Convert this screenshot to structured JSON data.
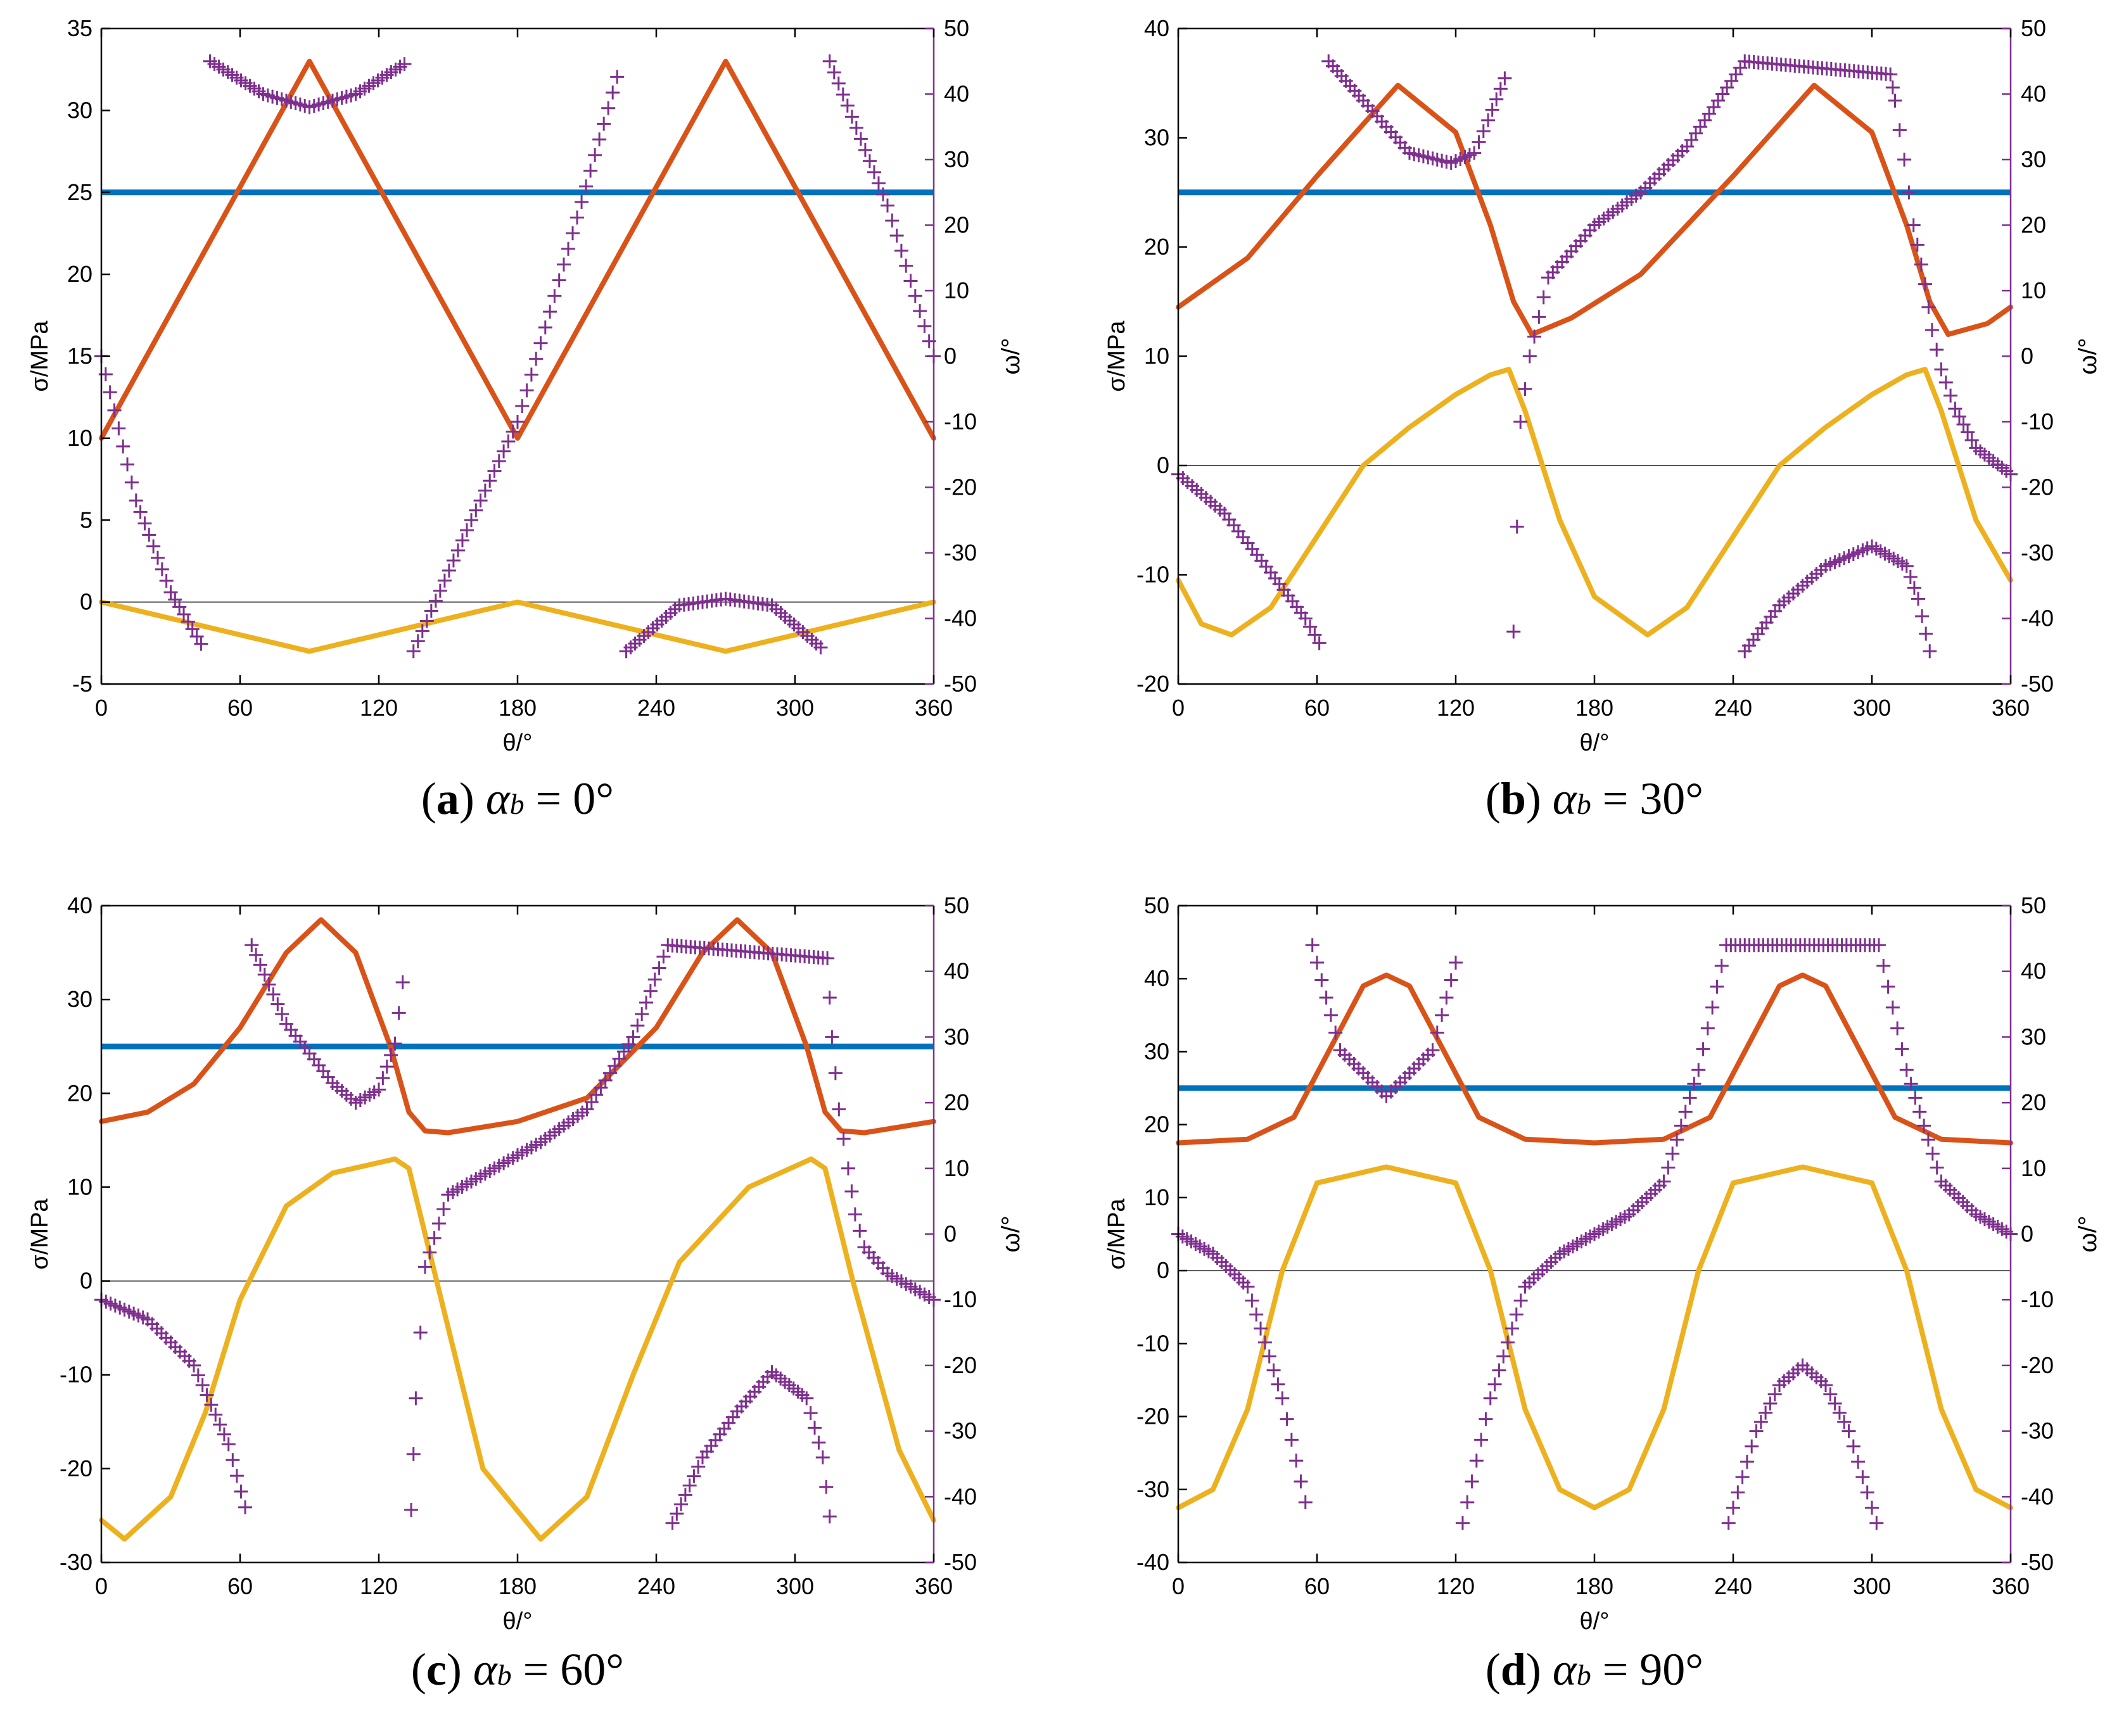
{
  "figure": {
    "panels": [
      {
        "caption_letter": "a",
        "caption_alpha": "α",
        "caption_sub": "b",
        "caption_value": "= 0°",
        "chart_data": {
          "type": "line",
          "xlabel": "θ/°",
          "ylabel": "σ/MPa",
          "y2label": "ω/°",
          "xlim": [
            0,
            360
          ],
          "ylim": [
            -5,
            35
          ],
          "y2lim": [
            -50,
            50
          ],
          "xticks": [
            "0",
            "60",
            "120",
            "180",
            "240",
            "300",
            "360"
          ],
          "yticks": [
            "-5",
            "0",
            "5",
            "10",
            "15",
            "20",
            "25",
            "30",
            "35"
          ],
          "y2ticks": [
            "-50",
            "-40",
            "-30",
            "-20",
            "-10",
            "0",
            "10",
            "20",
            "30",
            "40",
            "50"
          ],
          "series": [
            {
              "color": "#0072BD",
              "constant": 25
            },
            {
              "color": "#D95319",
              "x": [
                0,
                45,
                90,
                135,
                180,
                225,
                270,
                315,
                360
              ],
              "y": [
                10,
                21.5,
                33,
                21.5,
                10,
                21.5,
                33,
                21.5,
                10
              ]
            },
            {
              "color": "#EDB120",
              "x": [
                0,
                45,
                90,
                135,
                180,
                225,
                270,
                315,
                360
              ],
              "y": [
                0,
                -1.5,
                -3,
                -1.5,
                0,
                -1.5,
                -3,
                -1.5,
                0
              ]
            },
            {
              "color": "#7E2F8E",
              "marker": "+",
              "axis": "right",
              "x": [
                0,
                15,
                30,
                45,
                47,
                70,
                90,
                110,
                133,
                135,
                160,
                180,
                200,
                225,
                227,
                250,
                270,
                290,
                313,
                315,
                340,
                360
              ],
              "y": [
                0,
                -22,
                -36,
                -45,
                45,
                40,
                38,
                40,
                45,
                -45,
                -25,
                -10,
                14,
                45,
                -45,
                -38,
                -37,
                -38,
                -45,
                45,
                23,
                0
              ]
            }
          ]
        }
      },
      {
        "caption_letter": "b",
        "caption_alpha": "α",
        "caption_sub": "b",
        "caption_value": "= 30°",
        "chart_data": {
          "type": "line",
          "xlabel": "θ/°",
          "ylabel": "σ/MPa",
          "y2label": "ω/°",
          "xlim": [
            0,
            360
          ],
          "ylim": [
            -20,
            40
          ],
          "y2lim": [
            -50,
            50
          ],
          "xticks": [
            "0",
            "60",
            "120",
            "180",
            "240",
            "300",
            "360"
          ],
          "yticks": [
            "-20",
            "-10",
            "0",
            "10",
            "20",
            "30",
            "40"
          ],
          "y2ticks": [
            "-50",
            "-40",
            "-30",
            "-20",
            "-10",
            "0",
            "10",
            "20",
            "30",
            "40",
            "50"
          ],
          "series": [
            {
              "color": "#0072BD",
              "constant": 25
            },
            {
              "color": "#D95319",
              "x": [
                0,
                30,
                60,
                95,
                120,
                135,
                145,
                153,
                170,
                200,
                240,
                275,
                300,
                315,
                325,
                333,
                350,
                360
              ],
              "y": [
                14.5,
                19,
                26.5,
                34.8,
                30.5,
                22,
                15,
                12,
                13.5,
                17.5,
                26.5,
                34.8,
                30.5,
                22,
                15,
                12,
                13,
                14.5
              ]
            },
            {
              "color": "#EDB120",
              "x": [
                0,
                10,
                23,
                40,
                60,
                80,
                100,
                120,
                135,
                143,
                150,
                165,
                180,
                203,
                220,
                240,
                260,
                280,
                300,
                315,
                323,
                330,
                345,
                360
              ],
              "y": [
                -10.5,
                -14.5,
                -15.5,
                -13,
                -6.5,
                0,
                3.5,
                6.5,
                8.3,
                8.8,
                5,
                -5,
                -12,
                -15.5,
                -13,
                -6.5,
                0,
                3.5,
                6.5,
                8.3,
                8.8,
                5,
                -5,
                -10.5
              ]
            },
            {
              "color": "#7E2F8E",
              "marker": "+",
              "axis": "right",
              "x": [
                0,
                20,
                40,
                55,
                63,
                65,
                80,
                100,
                118,
                128,
                134,
                143,
                145,
                148,
                152,
                160,
                180,
                200,
                220,
                245,
                308,
                310,
                314,
                318,
                323,
                326,
                330,
                336,
                345,
                360
              ],
              "y": [
                -18,
                -24,
                -33,
                -40,
                -45,
                45,
                39,
                31,
                29.5,
                31,
                36,
                44,
                -42,
                -10,
                0,
                12,
                20,
                25,
                32,
                45,
                43,
                39,
                30,
                20,
                11,
                4,
                -2,
                -8,
                -14,
                -18
              ]
            },
            {
              "color": "#7E2F8E",
              "marker": "+",
              "axis": "right",
              "x": [
                245,
                260,
                280,
                300,
                315,
                320,
                325
              ],
              "y": [
                -45,
                -38,
                -32,
                -29,
                -32,
                -37,
                -45
              ]
            }
          ]
        }
      },
      {
        "caption_letter": "c",
        "caption_alpha": "α",
        "caption_sub": "b",
        "caption_value": "= 60°",
        "chart_data": {
          "type": "line",
          "xlabel": "θ/°",
          "ylabel": "σ/MPa",
          "y2label": "ω/°",
          "xlim": [
            0,
            360
          ],
          "ylim": [
            -30,
            40
          ],
          "y2lim": [
            -50,
            50
          ],
          "xticks": [
            "0",
            "60",
            "120",
            "180",
            "240",
            "300",
            "360"
          ],
          "yticks": [
            "-30",
            "-20",
            "-10",
            "0",
            "10",
            "20",
            "30",
            "40"
          ],
          "y2ticks": [
            "-50",
            "-40",
            "-30",
            "-20",
            "-10",
            "0",
            "10",
            "20",
            "30",
            "40",
            "50"
          ],
          "series": [
            {
              "color": "#0072BD",
              "constant": 25
            },
            {
              "color": "#D95319",
              "x": [
                0,
                20,
                40,
                60,
                80,
                95,
                110,
                125,
                133,
                140,
                150,
                180,
                210,
                240,
                260,
                275,
                290,
                305,
                313,
                320,
                330,
                360
              ],
              "y": [
                17,
                18,
                21,
                27,
                35,
                38.5,
                35,
                25,
                18,
                16,
                15.8,
                17,
                19.5,
                27,
                35,
                38.5,
                35,
                25,
                18,
                16,
                15.8,
                17
              ]
            },
            {
              "color": "#EDB120",
              "x": [
                0,
                10,
                30,
                45,
                60,
                80,
                100,
                127,
                133,
                145,
                165,
                190,
                210,
                230,
                250,
                280,
                307,
                313,
                325,
                345,
                360
              ],
              "y": [
                -25.5,
                -27.5,
                -23,
                -14,
                -2,
                8,
                11.5,
                13,
                12,
                0,
                -20,
                -27.5,
                -23,
                -10,
                2,
                10,
                13,
                12,
                0,
                -18,
                -25.5
              ]
            },
            {
              "color": "#7E2F8E",
              "marker": "+",
              "axis": "right",
              "x": [
                0,
                20,
                40,
                55,
                64,
                65,
                80,
                100,
                110,
                120,
                127,
                132,
                134,
                136,
                140,
                150,
                170,
                190,
                210,
                230,
                245,
                314,
                316,
                319,
                323,
                326,
                330,
                340,
                350,
                360
              ],
              "y": [
                -10,
                -13,
                -20,
                -32,
                -44,
                44,
                32,
                23,
                20,
                22,
                29,
                43,
                -42,
                -25,
                -5,
                6,
                10,
                14,
                19,
                30,
                44,
                42,
                30,
                19,
                10,
                3,
                -2,
                -6,
                -8,
                -10
              ]
            },
            {
              "color": "#7E2F8E",
              "marker": "+",
              "axis": "right",
              "x": [
                247,
                260,
                275,
                290,
                305,
                312,
                315
              ],
              "y": [
                -44,
                -34,
                -27,
                -21,
                -25,
                -34,
                -43
              ]
            }
          ]
        }
      },
      {
        "caption_letter": "d",
        "caption_alpha": "α",
        "caption_sub": "b",
        "caption_value": "= 90°",
        "chart_data": {
          "type": "line",
          "xlabel": "θ/°",
          "ylabel": "σ/MPa",
          "y2label": "ω/°",
          "xlim": [
            0,
            360
          ],
          "ylim": [
            -40,
            50
          ],
          "y2lim": [
            -50,
            50
          ],
          "xticks": [
            "0",
            "60",
            "120",
            "180",
            "240",
            "300",
            "360"
          ],
          "yticks": [
            "-40",
            "-30",
            "-20",
            "-10",
            "0",
            "10",
            "20",
            "30",
            "40",
            "50"
          ],
          "y2ticks": [
            "-50",
            "-40",
            "-30",
            "-20",
            "-10",
            "0",
            "10",
            "20",
            "30",
            "40",
            "50"
          ],
          "series": [
            {
              "color": "#0072BD",
              "constant": 25
            },
            {
              "color": "#D95319",
              "x": [
                0,
                30,
                50,
                65,
                80,
                90,
                100,
                115,
                130,
                150,
                180,
                210,
                230,
                245,
                260,
                270,
                280,
                295,
                310,
                330,
                360
              ],
              "y": [
                17.5,
                18,
                21,
                30,
                39,
                40.5,
                39,
                30,
                21,
                18,
                17.5,
                18,
                21,
                30,
                39,
                40.5,
                39,
                30,
                21,
                18,
                17.5
              ]
            },
            {
              "color": "#EDB120",
              "x": [
                0,
                15,
                30,
                45,
                60,
                90,
                120,
                135,
                150,
                165,
                180,
                195,
                210,
                225,
                240,
                270,
                300,
                315,
                330,
                345,
                360
              ],
              "y": [
                -32.5,
                -30,
                -19,
                0,
                12,
                14.2,
                12,
                0,
                -19,
                -30,
                -32.5,
                -30,
                -19,
                0,
                12,
                14.2,
                12,
                0,
                -19,
                -30,
                -32.5
              ]
            },
            {
              "color": "#7E2F8E",
              "marker": "+",
              "axis": "right",
              "x": [
                0,
                15,
                30,
                45,
                57,
                58,
                70,
                90,
                110,
                122,
                123,
                135,
                150,
                165,
                180,
                195,
                210,
                225,
                237,
                303,
                315,
                330,
                345,
                360
              ],
              "y": [
                0,
                -3,
                -8,
                -25,
                -44,
                44,
                28,
                21,
                28,
                44,
                -44,
                -25,
                -8,
                -3,
                0,
                3,
                8,
                25,
                44,
                44,
                25,
                8,
                3,
                0
              ]
            },
            {
              "color": "#7E2F8E",
              "marker": "+",
              "axis": "right",
              "x": [
                238,
                250,
                260,
                270,
                280,
                290,
                302
              ],
              "y": [
                -44,
                -30,
                -23,
                -20,
                -23,
                -30,
                -44
              ]
            }
          ]
        }
      }
    ]
  }
}
